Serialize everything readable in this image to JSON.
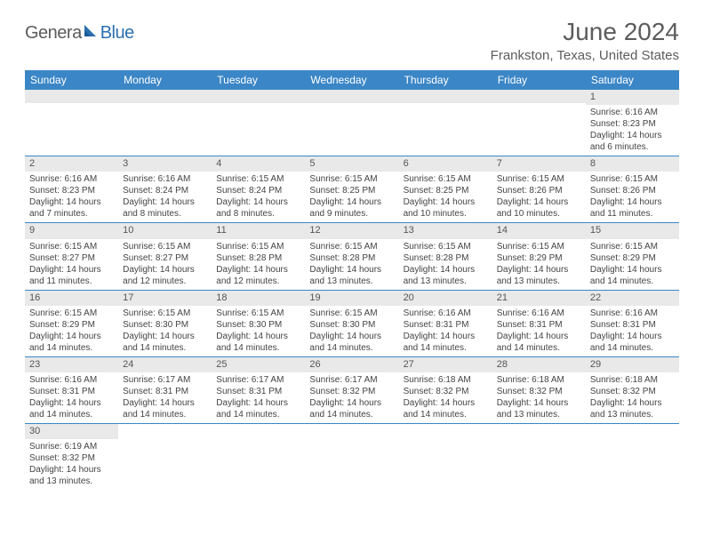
{
  "logo": {
    "part1": "Genera",
    "part2": "Blue"
  },
  "title": "June 2024",
  "location": "Frankston, Texas, United States",
  "header_bg": "#3b86c6",
  "header_fg": "#ffffff",
  "daynum_bg": "#e9e9e9",
  "cell_border": "#3b86c6",
  "days": [
    "Sunday",
    "Monday",
    "Tuesday",
    "Wednesday",
    "Thursday",
    "Friday",
    "Saturday"
  ],
  "weeks": [
    [
      null,
      null,
      null,
      null,
      null,
      null,
      {
        "n": "1",
        "sr": "6:16 AM",
        "ss": "8:23 PM",
        "dl": "14 hours and 6 minutes."
      }
    ],
    [
      {
        "n": "2",
        "sr": "6:16 AM",
        "ss": "8:23 PM",
        "dl": "14 hours and 7 minutes."
      },
      {
        "n": "3",
        "sr": "6:16 AM",
        "ss": "8:24 PM",
        "dl": "14 hours and 8 minutes."
      },
      {
        "n": "4",
        "sr": "6:15 AM",
        "ss": "8:24 PM",
        "dl": "14 hours and 8 minutes."
      },
      {
        "n": "5",
        "sr": "6:15 AM",
        "ss": "8:25 PM",
        "dl": "14 hours and 9 minutes."
      },
      {
        "n": "6",
        "sr": "6:15 AM",
        "ss": "8:25 PM",
        "dl": "14 hours and 10 minutes."
      },
      {
        "n": "7",
        "sr": "6:15 AM",
        "ss": "8:26 PM",
        "dl": "14 hours and 10 minutes."
      },
      {
        "n": "8",
        "sr": "6:15 AM",
        "ss": "8:26 PM",
        "dl": "14 hours and 11 minutes."
      }
    ],
    [
      {
        "n": "9",
        "sr": "6:15 AM",
        "ss": "8:27 PM",
        "dl": "14 hours and 11 minutes."
      },
      {
        "n": "10",
        "sr": "6:15 AM",
        "ss": "8:27 PM",
        "dl": "14 hours and 12 minutes."
      },
      {
        "n": "11",
        "sr": "6:15 AM",
        "ss": "8:28 PM",
        "dl": "14 hours and 12 minutes."
      },
      {
        "n": "12",
        "sr": "6:15 AM",
        "ss": "8:28 PM",
        "dl": "14 hours and 13 minutes."
      },
      {
        "n": "13",
        "sr": "6:15 AM",
        "ss": "8:28 PM",
        "dl": "14 hours and 13 minutes."
      },
      {
        "n": "14",
        "sr": "6:15 AM",
        "ss": "8:29 PM",
        "dl": "14 hours and 13 minutes."
      },
      {
        "n": "15",
        "sr": "6:15 AM",
        "ss": "8:29 PM",
        "dl": "14 hours and 14 minutes."
      }
    ],
    [
      {
        "n": "16",
        "sr": "6:15 AM",
        "ss": "8:29 PM",
        "dl": "14 hours and 14 minutes."
      },
      {
        "n": "17",
        "sr": "6:15 AM",
        "ss": "8:30 PM",
        "dl": "14 hours and 14 minutes."
      },
      {
        "n": "18",
        "sr": "6:15 AM",
        "ss": "8:30 PM",
        "dl": "14 hours and 14 minutes."
      },
      {
        "n": "19",
        "sr": "6:15 AM",
        "ss": "8:30 PM",
        "dl": "14 hours and 14 minutes."
      },
      {
        "n": "20",
        "sr": "6:16 AM",
        "ss": "8:31 PM",
        "dl": "14 hours and 14 minutes."
      },
      {
        "n": "21",
        "sr": "6:16 AM",
        "ss": "8:31 PM",
        "dl": "14 hours and 14 minutes."
      },
      {
        "n": "22",
        "sr": "6:16 AM",
        "ss": "8:31 PM",
        "dl": "14 hours and 14 minutes."
      }
    ],
    [
      {
        "n": "23",
        "sr": "6:16 AM",
        "ss": "8:31 PM",
        "dl": "14 hours and 14 minutes."
      },
      {
        "n": "24",
        "sr": "6:17 AM",
        "ss": "8:31 PM",
        "dl": "14 hours and 14 minutes."
      },
      {
        "n": "25",
        "sr": "6:17 AM",
        "ss": "8:31 PM",
        "dl": "14 hours and 14 minutes."
      },
      {
        "n": "26",
        "sr": "6:17 AM",
        "ss": "8:32 PM",
        "dl": "14 hours and 14 minutes."
      },
      {
        "n": "27",
        "sr": "6:18 AM",
        "ss": "8:32 PM",
        "dl": "14 hours and 14 minutes."
      },
      {
        "n": "28",
        "sr": "6:18 AM",
        "ss": "8:32 PM",
        "dl": "14 hours and 13 minutes."
      },
      {
        "n": "29",
        "sr": "6:18 AM",
        "ss": "8:32 PM",
        "dl": "14 hours and 13 minutes."
      }
    ],
    [
      {
        "n": "30",
        "sr": "6:19 AM",
        "ss": "8:32 PM",
        "dl": "14 hours and 13 minutes."
      },
      null,
      null,
      null,
      null,
      null,
      null
    ]
  ],
  "labels": {
    "sunrise": "Sunrise: ",
    "sunset": "Sunset: ",
    "daylight": "Daylight: "
  }
}
